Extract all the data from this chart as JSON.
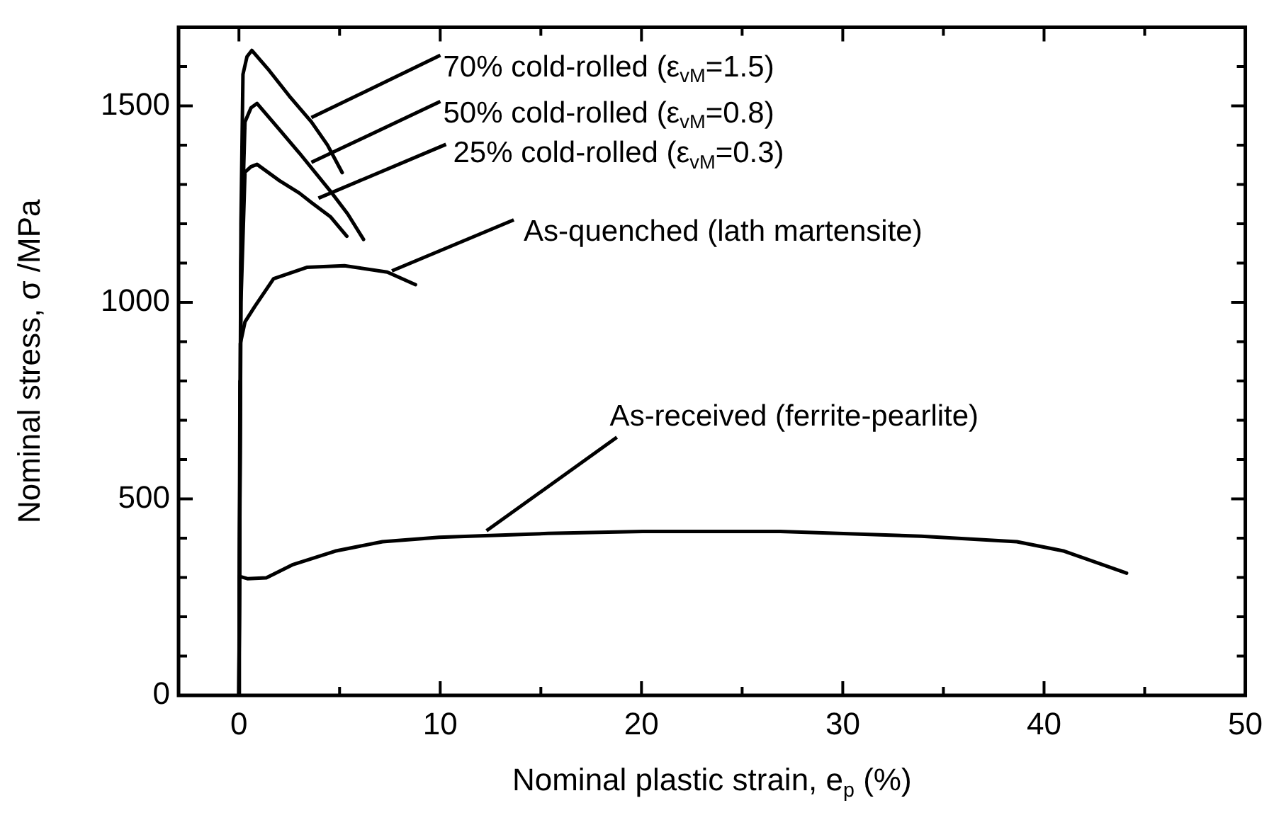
{
  "chart_data": {
    "type": "line",
    "xlabel": "Nominal plastic strain, e$_{p}$ (%)",
    "ylabel": "Nominal stress, σ /MPa",
    "xlim": [
      -3,
      50
    ],
    "ylim": [
      0,
      1700
    ],
    "xticks": [
      0,
      {
        "value": 5,
        "label": null
      },
      10,
      {
        "value": 15,
        "label": null
      },
      20,
      {
        "value": 25,
        "label": null
      },
      30,
      {
        "value": 35,
        "label": null
      },
      40,
      {
        "value": 45,
        "label": null
      },
      50
    ],
    "yticks": [
      0,
      {
        "value": 100,
        "label": null
      },
      {
        "value": 200,
        "label": null
      },
      {
        "value": 300,
        "label": null
      },
      {
        "value": 400,
        "label": null
      },
      500,
      {
        "value": 600,
        "label": null
      },
      {
        "value": 700,
        "label": null
      },
      {
        "value": 800,
        "label": null
      },
      {
        "value": 900,
        "label": null
      },
      1000,
      {
        "value": 1100,
        "label": null
      },
      {
        "value": 1200,
        "label": null
      },
      {
        "value": 1300,
        "label": null
      },
      {
        "value": 1400,
        "label": null
      },
      1500,
      {
        "value": 1600,
        "label": null
      }
    ],
    "grid": false,
    "legend": false,
    "marker": "none",
    "line_style": "solid",
    "series": [
      {
        "color": "#000000",
        "x": [
          0,
          0.1,
          0.2,
          0.4,
          0.64,
          1.5,
          2.5,
          3.6,
          4.4,
          5.13
        ],
        "values": [
          0,
          1200,
          1580,
          1625,
          1641,
          1590,
          1525,
          1459,
          1400,
          1330
        ]
      },
      {
        "color": "#000000",
        "x": [
          0,
          0.1,
          0.3,
          0.6,
          0.9,
          2,
          3,
          4.54,
          5.4,
          6.19
        ],
        "values": [
          0,
          1100,
          1459,
          1495,
          1506,
          1440,
          1380,
          1283,
          1225,
          1160
        ]
      },
      {
        "color": "#000000",
        "x": [
          0,
          0.1,
          0.3,
          0.6,
          0.9,
          2,
          3,
          3.6,
          4.54,
          5.36
        ],
        "values": [
          0,
          1000,
          1331,
          1345,
          1351,
          1310,
          1278,
          1254,
          1218,
          1168
        ]
      },
      {
        "color": "#000000",
        "x": [
          0,
          0.05,
          0.07,
          0.3,
          0.78,
          1.72,
          3.37,
          5.24,
          7.37,
          8.77
        ],
        "values": [
          0,
          800,
          895,
          950,
          989,
          1060,
          1089,
          1093,
          1077,
          1045
        ]
      },
      {
        "color": "#000000",
        "x": [
          0,
          0.02,
          0.42,
          1.36,
          2.65,
          4.78,
          7.13,
          9.95,
          15.36,
          20.06,
          24.8,
          26.9,
          33.9,
          38.65,
          41.0,
          44.1
        ],
        "values": [
          0,
          303,
          297,
          299,
          332,
          367,
          391,
          402,
          412,
          417,
          417,
          417,
          405,
          391,
          367,
          311
        ]
      }
    ],
    "annotations": [
      {
        "text": "70% cold-rolled (ε$_{vM}$=1.5)",
        "x": 3.6,
        "y": 1470
      },
      {
        "text": "50% cold-rolled (ε$_{vM}$=0.8)",
        "x": 3.6,
        "y": 1356
      },
      {
        "text": "25% cold-rolled (ε$_{vM}$=0.3)",
        "x": 3.95,
        "y": 1265
      },
      {
        "text": "As-quenched (lath martensite)",
        "x": 7.6,
        "y": 1080
      },
      {
        "text": "As-received (ferrite-pearlite)",
        "x": 12.3,
        "y": 408
      }
    ]
  }
}
